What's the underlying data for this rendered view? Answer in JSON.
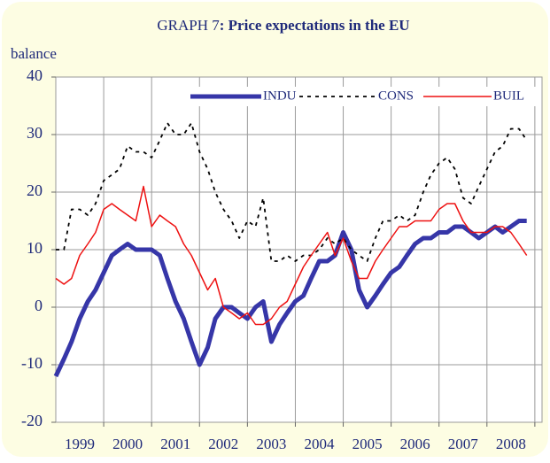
{
  "chart_data": {
    "type": "line",
    "title": [
      "GRAPH 7",
      ": Price expectations in the EU"
    ],
    "y_label": "balance",
    "x": [
      1999,
      1999.17,
      1999.33,
      1999.5,
      1999.67,
      1999.83,
      2000,
      2000.17,
      2000.33,
      2000.5,
      2000.67,
      2000.83,
      2001,
      2001.17,
      2001.33,
      2001.5,
      2001.67,
      2001.83,
      2002,
      2002.17,
      2002.33,
      2002.5,
      2002.67,
      2002.83,
      2003,
      2003.17,
      2003.33,
      2003.5,
      2003.67,
      2003.83,
      2004,
      2004.17,
      2004.33,
      2004.5,
      2004.67,
      2004.83,
      2005,
      2005.17,
      2005.33,
      2005.5,
      2005.67,
      2005.83,
      2006,
      2006.17,
      2006.33,
      2006.5,
      2006.67,
      2006.83,
      2007,
      2007.17,
      2007.33,
      2007.5,
      2007.67,
      2007.83,
      2008,
      2008.17,
      2008.33,
      2008.5,
      2008.67,
      2008.83
    ],
    "series": [
      {
        "name": "INDU",
        "color": "#3636a8",
        "style": "solid",
        "width": 5,
        "values": [
          -12,
          -9,
          -6,
          -2,
          1,
          3,
          6,
          9,
          10,
          11,
          10,
          10,
          10,
          9,
          5,
          1,
          -2,
          -6,
          -10,
          -7,
          -2,
          0,
          0,
          -1,
          -2,
          0,
          1,
          -6,
          -3,
          -1,
          1,
          2,
          5,
          8,
          8,
          9,
          13,
          10,
          3,
          0,
          2,
          4,
          6,
          7,
          9,
          11,
          12,
          12,
          13,
          13,
          14,
          14,
          13,
          12,
          13,
          14,
          13,
          14,
          15,
          15
        ]
      },
      {
        "name": "CONS",
        "color": "#000000",
        "style": "dashed",
        "width": 1.8,
        "values": [
          10,
          10,
          17,
          17,
          16,
          18,
          22,
          23,
          24,
          28,
          27,
          27,
          26,
          29,
          32,
          30,
          30,
          32,
          27,
          24,
          20,
          17,
          15,
          12,
          15,
          14,
          19,
          8,
          8,
          9,
          8,
          9,
          9,
          10,
          12,
          11,
          12,
          10,
          9,
          8,
          12,
          15,
          15,
          16,
          15,
          16,
          20,
          23,
          25,
          26,
          24,
          19,
          18,
          21,
          24,
          27,
          28,
          31,
          31,
          29
        ]
      },
      {
        "name": "BUIL",
        "color": "#ee1111",
        "style": "solid",
        "width": 1.5,
        "values": [
          5,
          4,
          5,
          9,
          11,
          13,
          17,
          18,
          17,
          16,
          15,
          21,
          14,
          16,
          15,
          14,
          11,
          9,
          6,
          3,
          5,
          0,
          -1,
          -2,
          -1,
          -3,
          -3,
          -2,
          0,
          1,
          4,
          7,
          9,
          11,
          13,
          9,
          12,
          8,
          5,
          5,
          8,
          10,
          12,
          14,
          14,
          15,
          15,
          15,
          17,
          18,
          18,
          15,
          13,
          13,
          13,
          14,
          14,
          13,
          11,
          9
        ]
      }
    ],
    "xlim": [
      1999,
      2009.15
    ],
    "xticks": [
      {
        "value": 1999.5,
        "label": "1999"
      },
      {
        "value": 2000.5,
        "label": "2000"
      },
      {
        "value": 2001.5,
        "label": "2001"
      },
      {
        "value": 2002.5,
        "label": "2002"
      },
      {
        "value": 2003.5,
        "label": "2003"
      },
      {
        "value": 2004.5,
        "label": "2004"
      },
      {
        "value": 2005.5,
        "label": "2005"
      },
      {
        "value": 2006.5,
        "label": "2006"
      },
      {
        "value": 2007.5,
        "label": "2007"
      },
      {
        "value": 2008.5,
        "label": "2008"
      }
    ],
    "xgrid": [
      2000,
      2001,
      2002,
      2003,
      2004,
      2005,
      2006,
      2007,
      2008,
      2009
    ],
    "ylim": [
      -20,
      40
    ],
    "yticks": [
      -20,
      -10,
      0,
      10,
      20,
      30,
      40
    ],
    "grid": true,
    "legend": "top"
  }
}
